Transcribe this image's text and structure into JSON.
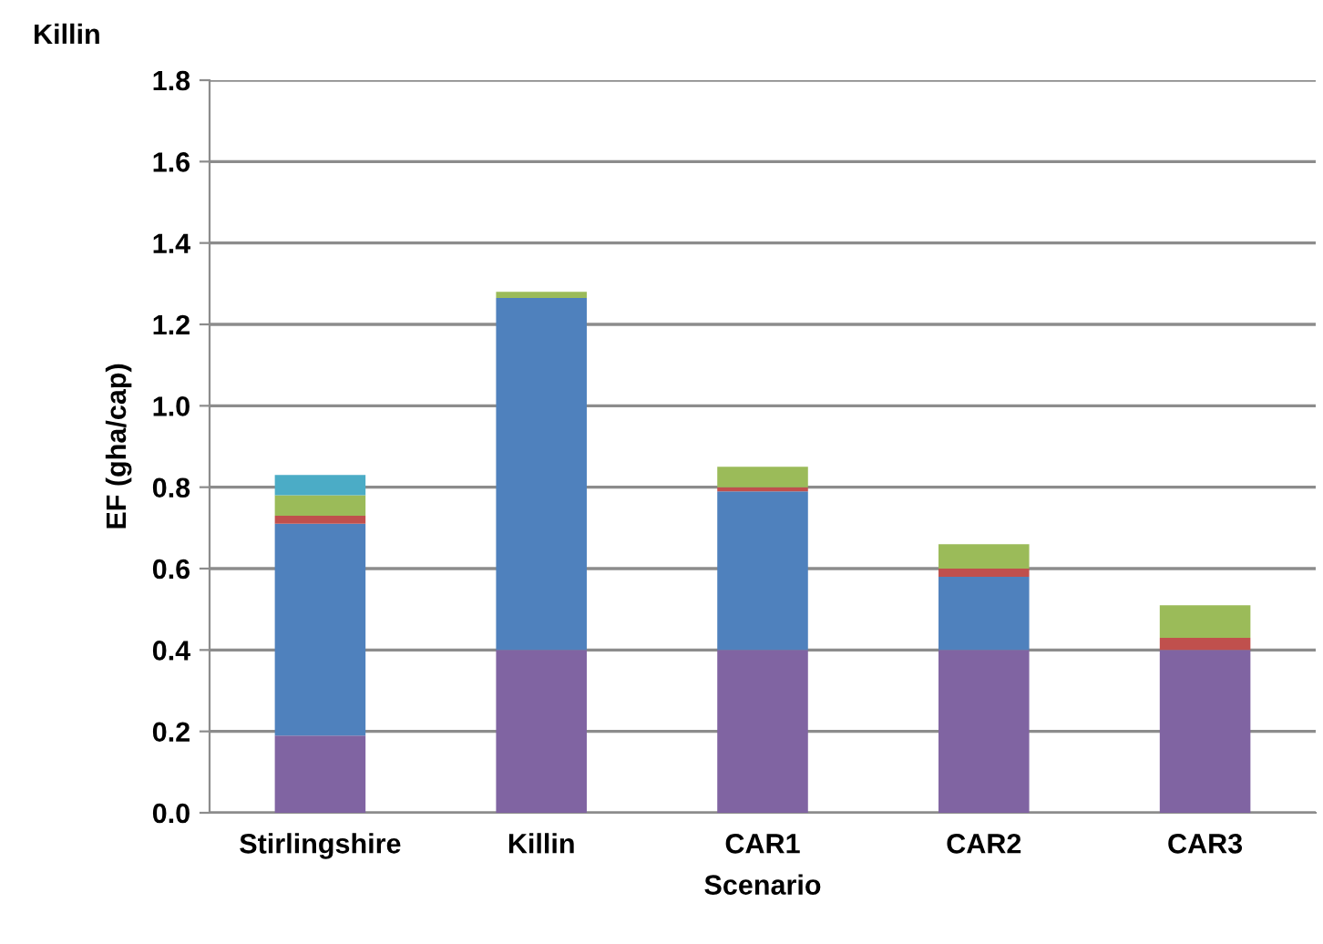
{
  "chart_data": {
    "type": "bar",
    "stacked": true,
    "title": "Killin",
    "xlabel": "Scenario",
    "ylabel": "EF (gha/cap)",
    "categories": [
      "Stirlingshire",
      "Killin",
      "CAR1",
      "CAR2",
      "CAR3"
    ],
    "series": [
      {
        "color": "#8064a2",
        "values": [
          0.19,
          0.4,
          0.4,
          0.4,
          0.4
        ]
      },
      {
        "color": "#4f81bd",
        "values": [
          0.52,
          0.865,
          0.39,
          0.18,
          0
        ]
      },
      {
        "color": "#c0504d",
        "values": [
          0.02,
          0,
          0.01,
          0.02,
          0.03
        ]
      },
      {
        "color": "#9bbb59",
        "values": [
          0.05,
          0.015,
          0.05,
          0.06,
          0.08
        ]
      },
      {
        "color": "#4bacc6",
        "values": [
          0.05,
          0,
          0,
          0,
          0
        ]
      }
    ],
    "ylim": [
      0,
      1.8
    ],
    "yticks": [
      {
        "value": 0,
        "label": "0.0"
      },
      {
        "value": 0.2,
        "label": "0.2"
      },
      {
        "value": 0.4,
        "label": "0.4"
      },
      {
        "value": 0.6,
        "label": "0.6"
      },
      {
        "value": 0.8,
        "label": "0.8"
      },
      {
        "value": 1.0,
        "label": "1.0"
      },
      {
        "value": 1.2,
        "label": "1.2"
      },
      {
        "value": 1.4,
        "label": "1.4"
      },
      {
        "value": 1.6,
        "label": "1.6"
      },
      {
        "value": 1.8,
        "label": "1.8"
      }
    ],
    "grid": "y"
  }
}
